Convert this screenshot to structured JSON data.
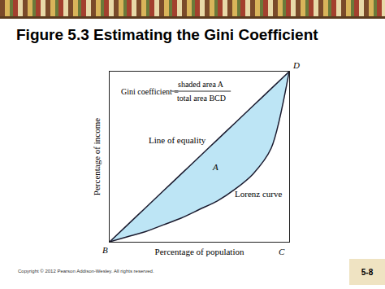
{
  "slide": {
    "title": "Figure 5.3  Estimating the Gini Coefficient",
    "footer": "Copyright © 2012 Pearson Addison-Wesley. All rights reserved.",
    "page": "5-8"
  },
  "chart_data": {
    "type": "line",
    "xlabel": "Percentage of population",
    "ylabel": "Percentage of income",
    "xlim": [
      0,
      100
    ],
    "ylim": [
      0,
      100
    ],
    "tick_labels": false,
    "grid": false,
    "x": [
      0,
      10,
      20,
      30,
      40,
      50,
      60,
      70,
      80,
      90,
      100
    ],
    "series": [
      {
        "name": "Line of equality",
        "color": "#1a1a2e",
        "values": [
          0,
          10,
          20,
          30,
          40,
          50,
          60,
          70,
          80,
          90,
          100
        ],
        "label_position": [
          38,
          60
        ]
      },
      {
        "name": "Lorenz curve",
        "color": "#1a1a2e",
        "values": [
          0,
          3,
          6,
          10,
          14,
          19,
          24,
          31,
          40,
          55,
          100
        ],
        "label_position": [
          83,
          28
        ]
      }
    ],
    "shade": {
      "label": "A",
      "color": "#bde5f5",
      "x": 59,
      "y": 44
    },
    "formula": {
      "left": "Gini coefficient =",
      "numerator": "shaded area A",
      "denominator": "total area BCD"
    },
    "points": [
      {
        "text": "B",
        "x": 0,
        "y": 0
      },
      {
        "text": "C",
        "x": 100,
        "y": 0
      },
      {
        "text": "D",
        "x": 100,
        "y": 100
      }
    ]
  }
}
